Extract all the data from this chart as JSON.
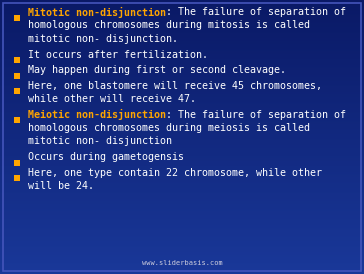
{
  "bg_color": "#1a3a8c",
  "bg_dark": "#0a1f6e",
  "bullet_color": "#FFA500",
  "text_white": "#FFFFFF",
  "text_orange": "#FFA500",
  "footer_color": "#ccccdd",
  "footer_text": "www.sliderbasis.com",
  "font_size": 7.2,
  "font_size_footer": 5.0,
  "fig_w": 3.64,
  "fig_h": 2.74,
  "dpi": 100,
  "bullets": [
    {
      "bold": "Mitotic non-disjunction",
      "rest": ": The failure of separation of\nhomologous chromosomes during mitosis is called\nmitotic non- disjunction.",
      "bold_color": "#FFA500",
      "num_lines": 3
    },
    {
      "bold": "",
      "rest": "It occurs after fertilization.",
      "bold_color": "#FFFFFF",
      "num_lines": 1
    },
    {
      "bold": "",
      "rest": "May happen during first or second cleavage.",
      "bold_color": "#FFFFFF",
      "num_lines": 1
    },
    {
      "bold": "",
      "rest": "Here, one blastomere will receive 45 chromosomes,\nwhile other will receive 47.",
      "bold_color": "#FFFFFF",
      "num_lines": 2
    },
    {
      "bold": "Meiotic non-disjunction",
      "rest": ": The failure of separation of\nhomologous chromosomes during meiosis is called\nmitotic non- disjunction",
      "bold_color": "#FFA500",
      "num_lines": 3
    },
    {
      "bold": "",
      "rest": "Occurs during gametogensis",
      "bold_color": "#FFFFFF",
      "num_lines": 1
    },
    {
      "bold": "",
      "rest": "Here, one type contain 22 chromosome, while other\nwill be 24.",
      "bold_color": "#FFFFFF",
      "num_lines": 2
    }
  ]
}
